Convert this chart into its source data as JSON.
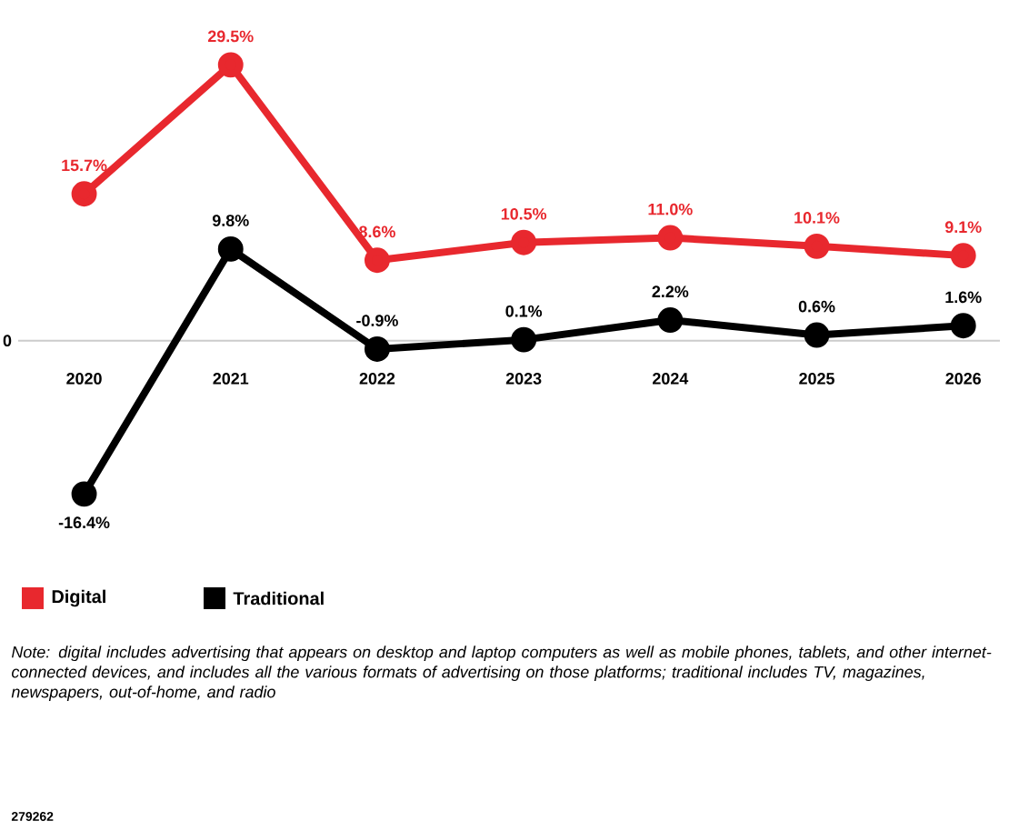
{
  "chart_data": {
    "type": "line",
    "categories": [
      "2020",
      "2021",
      "2022",
      "2023",
      "2024",
      "2025",
      "2026"
    ],
    "series": [
      {
        "name": "Digital",
        "color": "#e8282e",
        "values": [
          15.7,
          29.5,
          8.6,
          10.5,
          11.0,
          10.1,
          9.1
        ],
        "value_labels": [
          "15.7%",
          "29.5%",
          "8.6%",
          "10.5%",
          "11.0%",
          "10.1%",
          "9.1%"
        ]
      },
      {
        "name": "Traditional",
        "color": "#000000",
        "values": [
          -16.4,
          9.8,
          -0.9,
          0.1,
          2.2,
          0.6,
          1.6
        ],
        "value_labels": [
          "-16.4%",
          "9.8%",
          "-0.9%",
          "0.1%",
          "2.2%",
          "0.6%",
          "1.6%"
        ]
      }
    ],
    "marker": "circle",
    "line_style": "solid",
    "legend": "bottom left",
    "annotations": [
      "0",
      "Note: digital includes advertising that appears on desktop and laptop computers as well as mobile phones, tablets, and other internet-connected devices, and includes all the various formats of advertising on those platforms; traditional includes TV, magazines, newspapers, out-of-home, and radio",
      "279262"
    ]
  }
}
